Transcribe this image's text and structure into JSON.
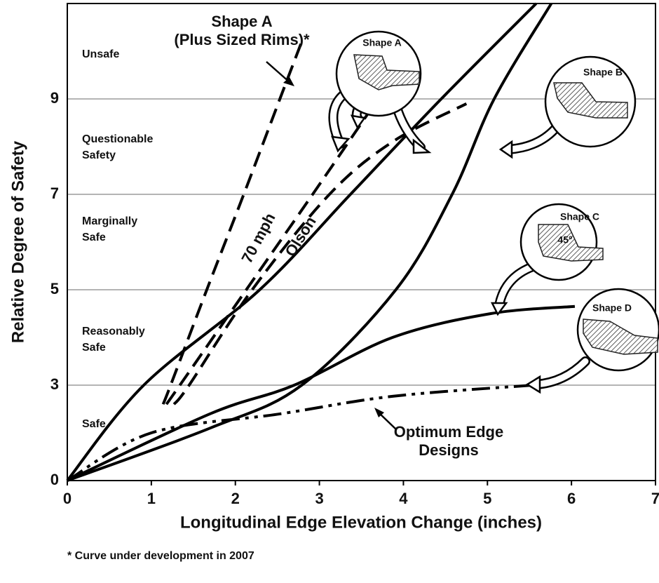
{
  "chart_data": {
    "type": "line",
    "x_label": "Longitudinal Edge Elevation Change (inches)",
    "y_label": "Relative Degree of Safety",
    "xlim": [
      0,
      7
    ],
    "xticks": [
      0,
      1,
      2,
      3,
      4,
      5,
      6,
      7
    ],
    "ylim": [
      0,
      11
    ],
    "yticks": [
      0,
      3,
      5,
      7,
      9
    ],
    "grid": true,
    "series": [
      {
        "color": "#000000",
        "style": "dashed",
        "x": [
          1.14,
          1.23,
          1.66,
          2.1,
          2.53,
          2.79
        ],
        "values": [
          2.4,
          3,
          5,
          7,
          9,
          10.2
        ]
      },
      {
        "name": "70 mph",
        "color": "#000000",
        "style": "dashed",
        "x": [
          1.18,
          1.34,
          2.13,
          2.92,
          3.62
        ],
        "values": [
          2.4,
          3,
          5,
          7,
          8.8
        ]
      },
      {
        "name": "Olson",
        "color": "#000000",
        "style": "dashed",
        "x": [
          1.27,
          1.45,
          2.2,
          3.12,
          3.87,
          4.75
        ],
        "values": [
          2.4,
          3,
          5,
          7,
          8.1,
          8.9
        ]
      },
      {
        "color": "#000000",
        "style": "solid",
        "x": [
          0,
          0.91,
          2.29,
          3.37,
          4.45,
          5.58
        ],
        "values": [
          0,
          3,
          5,
          7,
          9,
          11
        ]
      },
      {
        "color": "#000000",
        "style": "solid",
        "x": [
          0,
          1.7,
          2.79,
          3.91,
          4.58,
          5.08,
          5.76
        ],
        "values": [
          0,
          1.65,
          3,
          5,
          7,
          9,
          11
        ]
      },
      {
        "color": "#000000",
        "style": "solid",
        "x": [
          0,
          1.7,
          2.7,
          3.87,
          5.04,
          6.04
        ],
        "values": [
          0,
          2.1,
          3,
          4,
          4.5,
          4.65
        ]
      },
      {
        "color": "#000000",
        "style": "dashdot",
        "x": [
          0,
          1.0,
          2.54,
          3.87,
          5.54
        ],
        "values": [
          0,
          1.5,
          2.1,
          2.65,
          3
        ]
      }
    ],
    "zones": [
      "Unsafe",
      "Questionable",
      "Safety",
      "Marginally",
      "Safe",
      "Reasonably",
      "Safe",
      "Safe"
    ],
    "annotations": [
      "Shape A",
      "(Plus Sized Rims)*",
      "Optimum Edge",
      "Designs"
    ],
    "callouts": [
      "Shape A",
      "Shape B",
      "Shape C",
      "45°",
      "Shape D"
    ],
    "footnote": "* Curve under development in 2007"
  }
}
